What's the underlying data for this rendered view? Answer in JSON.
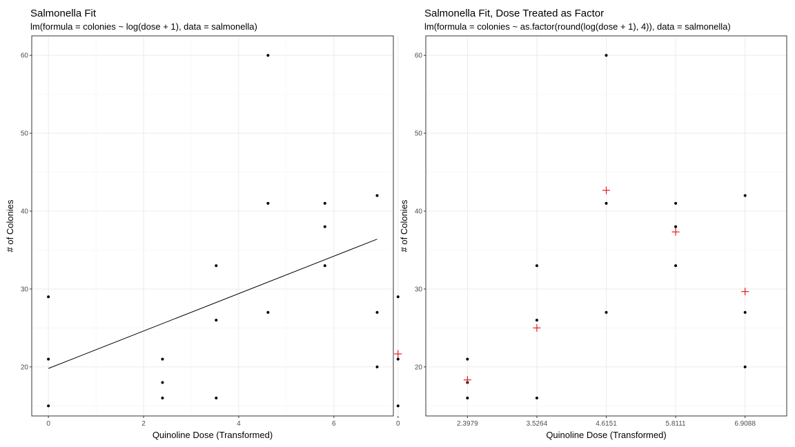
{
  "chart_data": [
    {
      "type": "scatter",
      "title": "Salmonella Fit",
      "subtitle": "lm(formula = colonies ~ log(dose + 1), data = salmonella)",
      "xlabel": "Quinoline Dose (Transformed)",
      "ylabel": "# of Colonies",
      "xlim": [
        -0.35,
        7.25
      ],
      "ylim": [
        13.7,
        62.5
      ],
      "x_ticks": [
        0,
        2,
        4,
        6
      ],
      "x_tick_labels": [
        "0",
        "2",
        "4",
        "6"
      ],
      "y_ticks": [
        20,
        30,
        40,
        50,
        60
      ],
      "y_tick_labels": [
        "20",
        "30",
        "40",
        "50",
        "60"
      ],
      "grid": true,
      "points": {
        "x": [
          0,
          0,
          0,
          2.3979,
          2.3979,
          2.3979,
          3.5264,
          3.5264,
          3.5264,
          4.6151,
          4.6151,
          4.6151,
          5.8111,
          5.8111,
          5.8111,
          6.9088,
          6.9088,
          6.9088
        ],
        "y": [
          15,
          21,
          29,
          16,
          18,
          21,
          16,
          26,
          33,
          27,
          41,
          60,
          33,
          38,
          41,
          20,
          27,
          42
        ],
        "color": "#000000"
      },
      "fit_line": {
        "x": [
          0,
          6.9088
        ],
        "y": [
          19.8,
          36.4
        ],
        "color": "#000000"
      }
    },
    {
      "type": "scatter",
      "title": "Salmonella Fit, Dose Treated as Factor",
      "subtitle": "lm(formula = colonies ~ as.factor(round(log(dose + 1), 4)), data = salmonella)",
      "xlabel": "Quinoline Dose (Transformed)",
      "ylabel": "# of Colonies",
      "categories": [
        "0",
        "2.3979",
        "3.5264",
        "4.6151",
        "5.8111",
        "6.9088"
      ],
      "ylim": [
        13.7,
        62.5
      ],
      "y_ticks": [
        20,
        30,
        40,
        50,
        60
      ],
      "y_tick_labels": [
        "20",
        "30",
        "40",
        "50",
        "60"
      ],
      "grid": true,
      "points": {
        "category_index": [
          0,
          0,
          0,
          1,
          1,
          1,
          2,
          2,
          2,
          3,
          3,
          3,
          4,
          4,
          4,
          5,
          5,
          5
        ],
        "y": [
          15,
          21,
          29,
          16,
          18,
          21,
          16,
          26,
          33,
          27,
          41,
          60,
          33,
          38,
          41,
          20,
          27,
          42
        ],
        "color": "#000000"
      },
      "fitted": {
        "values": [
          21.67,
          18.33,
          25.0,
          42.67,
          37.33,
          29.67
        ],
        "color": "#e41a1c",
        "marker": "plus"
      }
    }
  ]
}
